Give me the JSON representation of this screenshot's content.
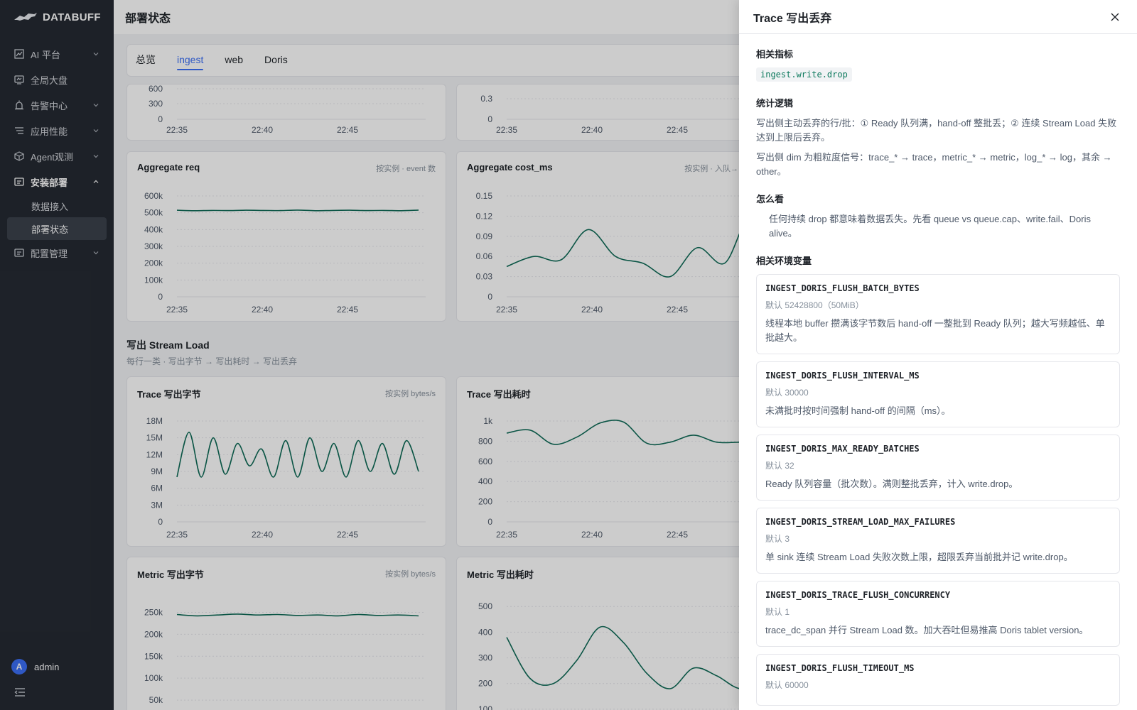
{
  "brand": {
    "name": "DATABUFF"
  },
  "sidebar": {
    "items": [
      {
        "label": "AI 平台",
        "icon": "chart-icon",
        "chevron": "down"
      },
      {
        "label": "全局大盘",
        "icon": "dashboard-icon",
        "chevron": ""
      },
      {
        "label": "告警中心",
        "icon": "alarm-icon",
        "chevron": "down"
      },
      {
        "label": "应用性能",
        "icon": "list-icon",
        "chevron": "down"
      },
      {
        "label": "Agent观测",
        "icon": "cube-icon",
        "chevron": "down"
      },
      {
        "label": "安装部署",
        "icon": "install-icon",
        "chevron": "up"
      },
      {
        "label": "配置管理",
        "icon": "config-icon",
        "chevron": "down"
      }
    ],
    "sub_items": [
      {
        "label": "数据接入"
      },
      {
        "label": "部署状态"
      }
    ],
    "user": {
      "initial": "A",
      "name": "admin"
    }
  },
  "page": {
    "title": "部署状态"
  },
  "tabs": [
    {
      "label": "总览"
    },
    {
      "label": "ingest"
    },
    {
      "label": "web"
    },
    {
      "label": "Doris"
    }
  ],
  "section": {
    "title": "写出 Stream Load",
    "subtitle": "每行一类 · 写出字节 → 写出耗时 → 写出丢弃"
  },
  "charts": {
    "top_left": {
      "ylabels": [
        "600",
        "300",
        "0"
      ],
      "xlabels": [
        "22:35",
        "22:40",
        "22:45"
      ]
    },
    "top_right": {
      "ylabels": [
        "0.3",
        "0"
      ],
      "xlabels": [
        "22:35",
        "22:40",
        "22:45"
      ]
    },
    "agg_req": {
      "title": "Aggregate req",
      "meta": "按实例 · event 数"
    },
    "agg_cost": {
      "title": "Aggregate cost_ms",
      "meta": "按实例 · 入队→"
    },
    "trace_bytes": {
      "title": "Trace 写出字节",
      "meta": "按实例   bytes/s"
    },
    "trace_cost": {
      "title": "Trace 写出耗时",
      "meta": ""
    },
    "metric_bytes": {
      "title": "Metric 写出字节",
      "meta": "按实例   bytes/s"
    },
    "metric_cost": {
      "title": "Metric 写出耗时",
      "meta": ""
    }
  },
  "chart_data": [
    {
      "type": "line",
      "title": "Aggregate req",
      "x": [
        "22:35",
        "22:36",
        "22:37",
        "22:38",
        "22:39",
        "22:40",
        "22:41",
        "22:42",
        "22:43",
        "22:44",
        "22:45",
        "22:46",
        "22:47",
        "22:48",
        "22:49"
      ],
      "series": [
        {
          "values": [
            515000,
            512000,
            514000,
            513000,
            515000,
            514000,
            513000,
            516000,
            512000,
            514000,
            515000,
            513000,
            514000,
            512000,
            516000
          ]
        }
      ],
      "yticks": [
        "0",
        "100k",
        "200k",
        "300k",
        "400k",
        "500k",
        "600k"
      ],
      "ylim": [
        0,
        600000
      ]
    },
    {
      "type": "line",
      "title": "Aggregate cost_ms",
      "x": [
        "22:35",
        "22:36",
        "22:37",
        "22:38",
        "22:39",
        "22:40",
        "22:41",
        "22:42",
        "22:43",
        "22:44",
        "22:45",
        "22:46",
        "22:47"
      ],
      "series": [
        {
          "values": [
            0.045,
            0.06,
            0.055,
            0.1,
            0.06,
            0.05,
            0.03,
            0.073,
            0.05,
            0.12,
            0.03,
            0.138,
            0.05
          ]
        }
      ],
      "yticks": [
        "0",
        "0.03",
        "0.06",
        "0.09",
        "0.12",
        "0.15"
      ],
      "ylim": [
        0,
        0.15
      ]
    },
    {
      "type": "line",
      "title": "Trace 写出字节",
      "x": [
        "22:35",
        "22:36",
        "22:37",
        "22:38",
        "22:39",
        "22:40",
        "22:41",
        "22:42",
        "22:43",
        "22:44",
        "22:45",
        "22:46",
        "22:47",
        "22:48",
        "22:49",
        "22:50",
        "22:51",
        "22:52",
        "22:53",
        "22:54",
        "22:55"
      ],
      "series": [
        {
          "values": [
            8000000,
            16000000,
            8000000,
            15000000,
            8500000,
            14000000,
            10000000,
            13000000,
            8000000,
            14500000,
            8000000,
            15000000,
            9000000,
            14000000,
            8000000,
            14500000,
            9000000,
            14000000,
            8500000,
            14500000,
            9000000
          ]
        }
      ],
      "yticks": [
        "0",
        "3M",
        "6M",
        "9M",
        "12M",
        "15M",
        "18M"
      ],
      "ylim": [
        0,
        18000000
      ]
    },
    {
      "type": "line",
      "title": "Trace 写出耗时",
      "x": [
        "22:35",
        "22:36",
        "22:37",
        "22:38",
        "22:39",
        "22:40",
        "22:41",
        "22:42",
        "22:43",
        "22:44",
        "22:45",
        "22:46",
        "22:47",
        "22:48",
        "22:49"
      ],
      "series": [
        {
          "values": [
            880,
            910,
            770,
            840,
            980,
            990,
            780,
            790,
            860,
            790,
            790,
            780,
            780,
            780,
            900
          ]
        }
      ],
      "yticks": [
        "0",
        "200",
        "400",
        "600",
        "800",
        "1k"
      ],
      "ylim": [
        0,
        1000
      ]
    },
    {
      "type": "line",
      "title": "Metric 写出字节",
      "x": [
        "22:35",
        "22:36",
        "22:37",
        "22:38",
        "22:39",
        "22:40",
        "22:41",
        "22:42",
        "22:43",
        "22:44",
        "22:45",
        "22:46",
        "22:47"
      ],
      "series": [
        {
          "values": [
            245000,
            242000,
            244000,
            246000,
            244000,
            245000,
            243000,
            244000,
            242000,
            245000,
            243000,
            244000,
            242000
          ]
        }
      ],
      "yticks": [
        "50k",
        "100k",
        "150k",
        "200k",
        "250k"
      ],
      "ylim": [
        0,
        275000
      ]
    },
    {
      "type": "line",
      "title": "Metric 写出耗时",
      "x": [
        "22:35",
        "22:36",
        "22:37",
        "22:38",
        "22:39",
        "22:40",
        "22:41",
        "22:42",
        "22:43",
        "22:44",
        "22:45",
        "22:46",
        "22:47",
        "22:48",
        "22:49"
      ],
      "series": [
        {
          "values": [
            380,
            220,
            200,
            290,
            420,
            360,
            240,
            180,
            260,
            230,
            180,
            210,
            220,
            240,
            250
          ]
        }
      ],
      "yticks": [
        "100",
        "200",
        "300",
        "400",
        "500"
      ],
      "ylim": [
        50,
        520
      ]
    }
  ],
  "drawer": {
    "title": "Trace 写出丢弃",
    "metric_heading": "相关指标",
    "metric_tag": "ingest.write.drop",
    "logic_heading": "统计逻辑",
    "logic_p1": "写出侧主动丢弃的行/批：① Ready 队列满，hand-off 整批丢；② 连续 Stream Load 失败达到上限后丢弃。",
    "logic_p2": "写出侧 dim 为粗粒度信号：trace_* → trace，metric_* → metric，log_* → log，其余 → other。",
    "howto_heading": "怎么看",
    "howto_p": "任何持续 drop 都意味着数据丢失。先看 queue vs queue.cap、write.fail、Doris alive。",
    "env_heading": "相关环境变量",
    "env": [
      {
        "name": "INGEST_DORIS_FLUSH_BATCH_BYTES",
        "default": "默认 52428800（50MiB）",
        "desc": "线程本地 buffer 攒满该字节数后 hand-off 一整批到 Ready 队列；越大写频越低、单批越大。"
      },
      {
        "name": "INGEST_DORIS_FLUSH_INTERVAL_MS",
        "default": "默认 30000",
        "desc": "未满批时按时间强制 hand-off 的间隔（ms）。"
      },
      {
        "name": "INGEST_DORIS_MAX_READY_BATCHES",
        "default": "默认 32",
        "desc": "Ready 队列容量（批次数）。满则整批丢弃，计入 write.drop。"
      },
      {
        "name": "INGEST_DORIS_STREAM_LOAD_MAX_FAILURES",
        "default": "默认 3",
        "desc": "单 sink 连续 Stream Load 失败次数上限，超限丢弃当前批并记 write.drop。"
      },
      {
        "name": "INGEST_DORIS_TRACE_FLUSH_CONCURRENCY",
        "default": "默认 1",
        "desc": "trace_dc_span 并行 Stream Load 数。加大吞吐但易推高 Doris tablet version。"
      },
      {
        "name": "INGEST_DORIS_FLUSH_TIMEOUT_MS",
        "default": "默认 60000",
        "desc": ""
      }
    ]
  },
  "colors": {
    "accent": "#3b6ff5",
    "line": "#0e6b57",
    "sidebar_bg": "#252a33"
  }
}
